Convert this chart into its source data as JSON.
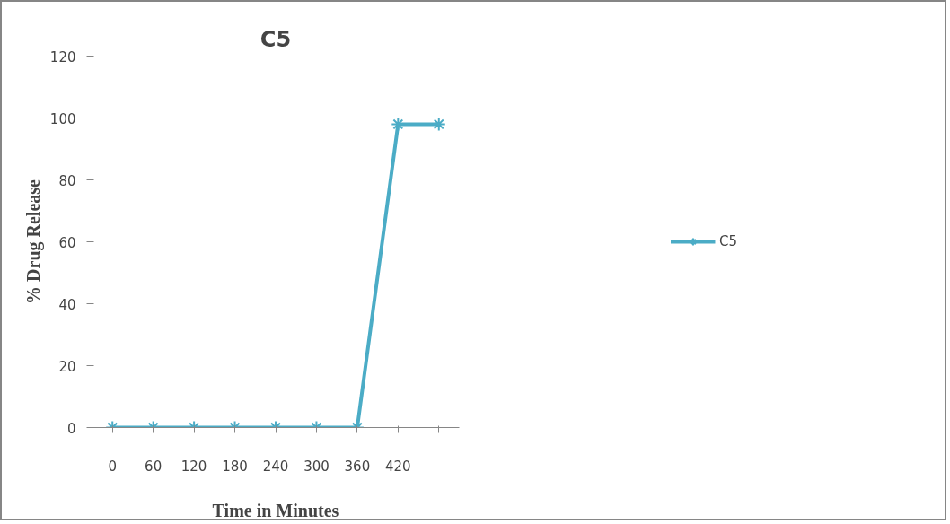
{
  "chart_data": {
    "type": "line",
    "title": "C5",
    "xlabel": "Time in Minutes",
    "ylabel": "% Drug Release",
    "categories": [
      "0",
      "60",
      "120",
      "180",
      "240",
      "300",
      "360",
      "420",
      null
    ],
    "series": [
      {
        "name": "C5",
        "color": "#4bacc6",
        "values": [
          0,
          0,
          0,
          0,
          0,
          0,
          0,
          98,
          98
        ]
      }
    ],
    "ylim": [
      0,
      120
    ],
    "yticks": [
      0,
      20,
      40,
      60,
      80,
      100,
      120
    ],
    "grid": false,
    "legend": "right",
    "marker": "cross",
    "line_style": "solid"
  }
}
